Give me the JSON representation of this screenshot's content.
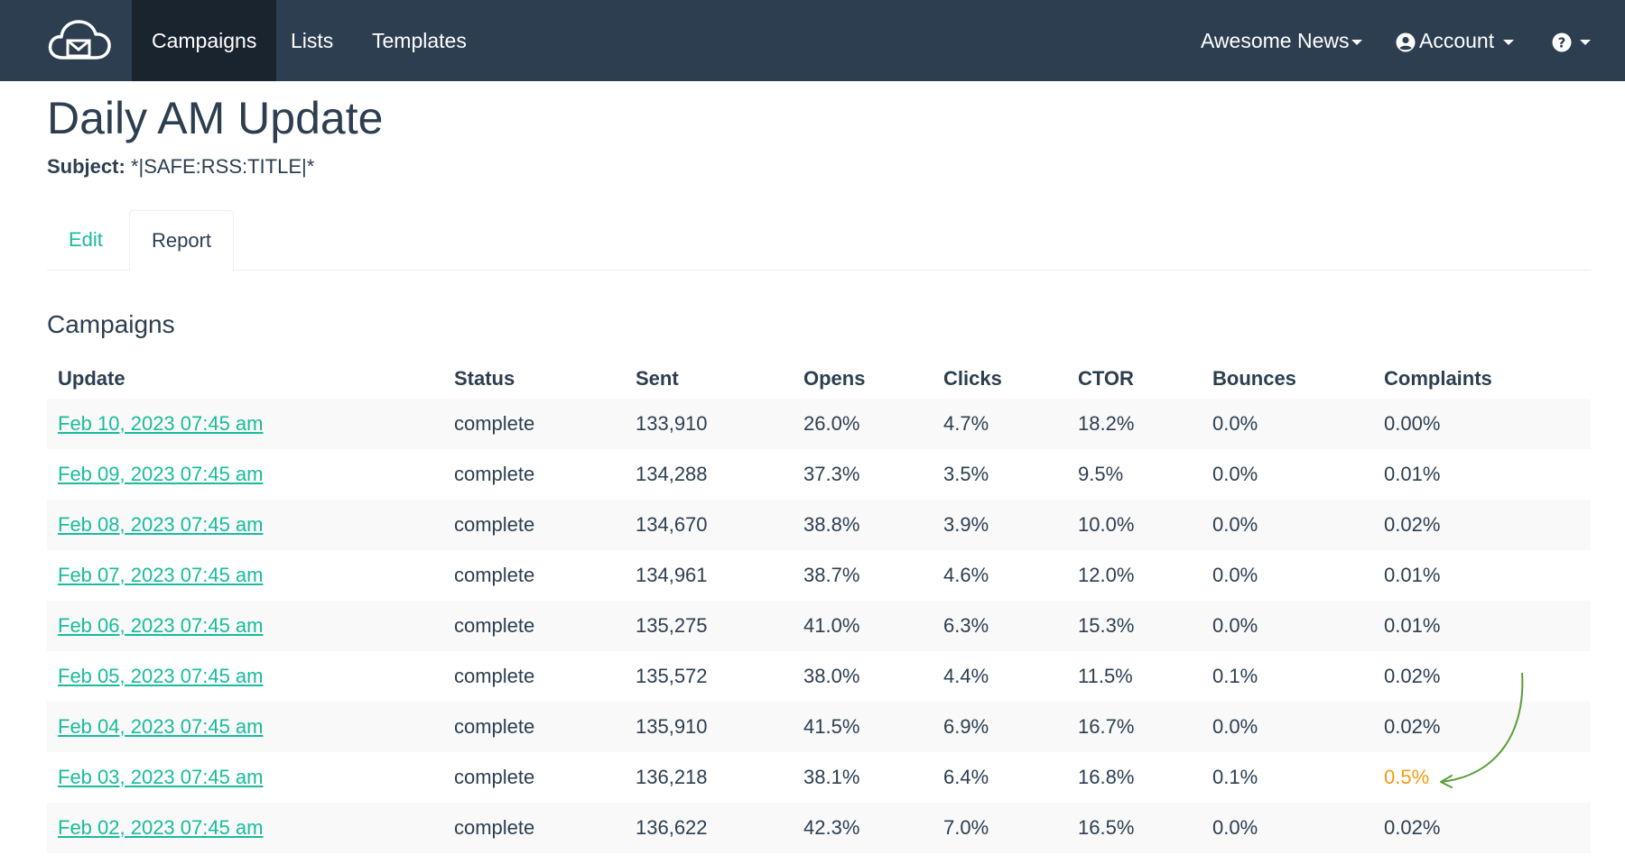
{
  "navbar": {
    "logo_icon": "cloud-envelope-icon",
    "links": [
      {
        "label": "Campaigns",
        "active": true
      },
      {
        "label": "Lists",
        "active": false
      },
      {
        "label": "Templates",
        "active": false
      }
    ],
    "workspace_label": "Awesome News",
    "account_label": "Account",
    "account_icon": "user-circle-icon",
    "help_icon": "question-circle-icon",
    "colors": {
      "background": "#2c3e50",
      "active_background": "#1a242f"
    }
  },
  "page": {
    "title": "Daily AM Update",
    "subject_label": "Subject:",
    "subject_value": "*|SAFE:RSS:TITLE|*"
  },
  "tabs": [
    {
      "label": "Edit",
      "active": false
    },
    {
      "label": "Report",
      "active": true
    }
  ],
  "campaigns": {
    "title": "Campaigns",
    "columns": [
      "Update",
      "Status",
      "Sent",
      "Opens",
      "Clicks",
      "CTOR",
      "Bounces",
      "Complaints"
    ],
    "rows": [
      {
        "update": "Feb 10, 2023 07:45 am",
        "status": "complete",
        "sent": "133,910",
        "opens": "26.0%",
        "clicks": "4.7%",
        "ctor": "18.2%",
        "bounces": "0.0%",
        "complaints": "0.00%"
      },
      {
        "update": "Feb 09, 2023 07:45 am",
        "status": "complete",
        "sent": "134,288",
        "opens": "37.3%",
        "clicks": "3.5%",
        "ctor": "9.5%",
        "bounces": "0.0%",
        "complaints": "0.01%"
      },
      {
        "update": "Feb 08, 2023 07:45 am",
        "status": "complete",
        "sent": "134,670",
        "opens": "38.8%",
        "clicks": "3.9%",
        "ctor": "10.0%",
        "bounces": "0.0%",
        "complaints": "0.02%"
      },
      {
        "update": "Feb 07, 2023 07:45 am",
        "status": "complete",
        "sent": "134,961",
        "opens": "38.7%",
        "clicks": "4.6%",
        "ctor": "12.0%",
        "bounces": "0.0%",
        "complaints": "0.01%"
      },
      {
        "update": "Feb 06, 2023 07:45 am",
        "status": "complete",
        "sent": "135,275",
        "opens": "41.0%",
        "clicks": "6.3%",
        "ctor": "15.3%",
        "bounces": "0.0%",
        "complaints": "0.01%"
      },
      {
        "update": "Feb 05, 2023 07:45 am",
        "status": "complete",
        "sent": "135,572",
        "opens": "38.0%",
        "clicks": "4.4%",
        "ctor": "11.5%",
        "bounces": "0.1%",
        "complaints": "0.02%"
      },
      {
        "update": "Feb 04, 2023 07:45 am",
        "status": "complete",
        "sent": "135,910",
        "opens": "41.5%",
        "clicks": "6.9%",
        "ctor": "16.7%",
        "bounces": "0.0%",
        "complaints": "0.02%"
      },
      {
        "update": "Feb 03, 2023 07:45 am",
        "status": "complete",
        "sent": "136,218",
        "opens": "38.1%",
        "clicks": "6.4%",
        "ctor": "16.8%",
        "bounces": "0.1%",
        "complaints": "0.5%",
        "complaints_warning": true
      },
      {
        "update": "Feb 02, 2023 07:45 am",
        "status": "complete",
        "sent": "136,622",
        "opens": "42.3%",
        "clicks": "7.0%",
        "ctor": "16.5%",
        "bounces": "0.0%",
        "complaints": "0.02%"
      }
    ]
  },
  "colors": {
    "link": "#18bc9c",
    "warning": "#f39c12",
    "annotation_arrow": "#5a9e3a",
    "text": "#2c3e50",
    "stripe": "#f9f9f9"
  },
  "annotation": {
    "icon": "curved-arrow-icon"
  }
}
